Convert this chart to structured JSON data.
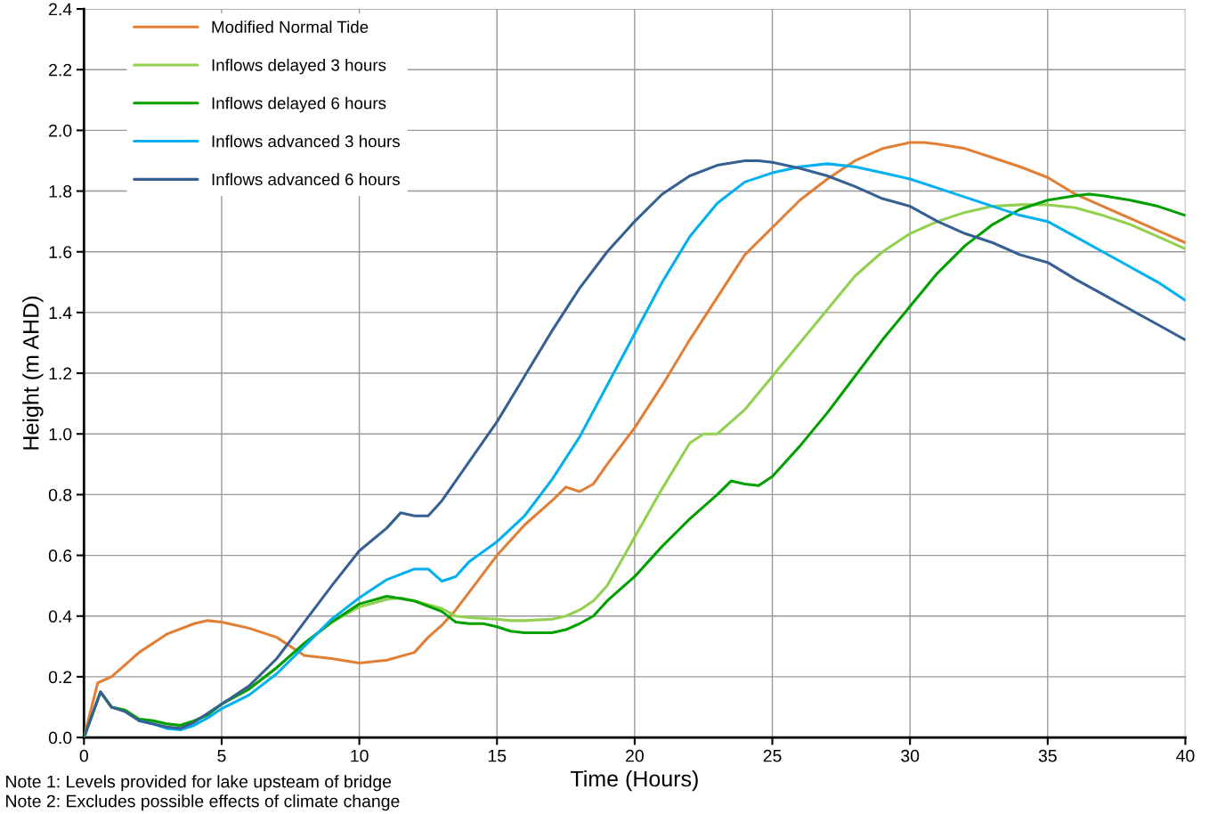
{
  "chart_data": {
    "type": "line",
    "xlabel": "Time (Hours)",
    "ylabel": "Height (m AHD)",
    "xlim": [
      0,
      40
    ],
    "xticks": [
      0,
      5,
      10,
      15,
      20,
      25,
      30,
      35,
      40
    ],
    "ylim": [
      0,
      2.4
    ],
    "yticks": [
      {
        "value": 0,
        "label": "0.0"
      },
      {
        "value": 0.2,
        "label": "0.2"
      },
      {
        "value": 0.4,
        "label": "0.4"
      },
      {
        "value": 0.6,
        "label": "0.6"
      },
      {
        "value": 0.8,
        "label": "0.8"
      },
      {
        "value": 1.0,
        "label": "1.0"
      },
      {
        "value": 1.2,
        "label": "1.2"
      },
      {
        "value": 1.4,
        "label": "1.4"
      },
      {
        "value": 1.6,
        "label": "1.6"
      },
      {
        "value": 1.8,
        "label": "1.8"
      },
      {
        "value": 2.0,
        "label": "2.0"
      },
      {
        "value": 2.2,
        "label": "2.2"
      },
      {
        "value": 2.4,
        "label": "2.4"
      }
    ],
    "grid": true,
    "legend": "top left",
    "marker": "none",
    "line_style": "solid",
    "annotations": [
      "Note 1: Levels provided for lake upsteam of bridge",
      "Note 2: Excludes possible effects of climate change"
    ],
    "series": [
      {
        "name": "Modified Normal Tide",
        "color": "#e07f35",
        "x": [
          0,
          0.5,
          1,
          1.5,
          2,
          3,
          4,
          4.5,
          5,
          6,
          7,
          8,
          9,
          10,
          11,
          12,
          12.5,
          13,
          13.5,
          15,
          16,
          17,
          17.5,
          18,
          18.5,
          19,
          20,
          21,
          22,
          23,
          24,
          25,
          26,
          27,
          28,
          29,
          30,
          30.5,
          31,
          32,
          33,
          34,
          35,
          36,
          37,
          38,
          39,
          40
        ],
        "values": [
          0,
          0.18,
          0.2,
          0.24,
          0.28,
          0.34,
          0.375,
          0.385,
          0.38,
          0.36,
          0.33,
          0.27,
          0.26,
          0.245,
          0.255,
          0.28,
          0.33,
          0.37,
          0.42,
          0.6,
          0.7,
          0.78,
          0.825,
          0.81,
          0.835,
          0.9,
          1.02,
          1.16,
          1.31,
          1.45,
          1.59,
          1.68,
          1.77,
          1.84,
          1.9,
          1.94,
          1.96,
          1.96,
          1.955,
          1.94,
          1.91,
          1.88,
          1.845,
          1.79,
          1.75,
          1.71,
          1.67,
          1.63
        ]
      },
      {
        "name": "Inflows delayed 3 hours",
        "color": "#92d050",
        "x": [
          0,
          0.6,
          1,
          1.5,
          2,
          2.5,
          3,
          3.5,
          4,
          4.5,
          5,
          6,
          7,
          8,
          9,
          10,
          11,
          11.5,
          12,
          13,
          13.5,
          14,
          15,
          15.5,
          16,
          17,
          17.5,
          18,
          18.5,
          19,
          19.5,
          20,
          21,
          22,
          22.5,
          23,
          24,
          25,
          26,
          27,
          28,
          29,
          30,
          31,
          32,
          33,
          34,
          35,
          36,
          37,
          38,
          39,
          40
        ],
        "values": [
          0,
          0.15,
          0.1,
          0.09,
          0.06,
          0.055,
          0.045,
          0.04,
          0.055,
          0.075,
          0.11,
          0.16,
          0.23,
          0.31,
          0.38,
          0.43,
          0.455,
          0.46,
          0.45,
          0.425,
          0.4,
          0.395,
          0.39,
          0.385,
          0.385,
          0.39,
          0.4,
          0.42,
          0.45,
          0.5,
          0.58,
          0.66,
          0.82,
          0.97,
          1.0,
          1.0,
          1.08,
          1.19,
          1.3,
          1.41,
          1.52,
          1.6,
          1.66,
          1.7,
          1.73,
          1.75,
          1.755,
          1.755,
          1.745,
          1.72,
          1.69,
          1.65,
          1.61
        ]
      },
      {
        "name": "Inflows delayed 6 hours",
        "color": "#00a000",
        "x": [
          0,
          0.6,
          1,
          1.5,
          2,
          2.5,
          3,
          3.5,
          4,
          4.5,
          5,
          6,
          7,
          8,
          9,
          10,
          11,
          12,
          13,
          13.5,
          14,
          14.5,
          15,
          15.5,
          16,
          17,
          17.5,
          18,
          18.5,
          19,
          20,
          21,
          22,
          23,
          23.5,
          24,
          24.5,
          25,
          26,
          27,
          28,
          29,
          30,
          31,
          32,
          33,
          34,
          35,
          36,
          36.5,
          37,
          38,
          39,
          40
        ],
        "values": [
          0,
          0.15,
          0.1,
          0.09,
          0.06,
          0.055,
          0.045,
          0.04,
          0.055,
          0.075,
          0.11,
          0.16,
          0.23,
          0.31,
          0.38,
          0.44,
          0.465,
          0.45,
          0.415,
          0.38,
          0.375,
          0.375,
          0.365,
          0.35,
          0.345,
          0.345,
          0.355,
          0.375,
          0.4,
          0.45,
          0.53,
          0.63,
          0.72,
          0.8,
          0.845,
          0.835,
          0.83,
          0.86,
          0.96,
          1.07,
          1.19,
          1.31,
          1.42,
          1.53,
          1.62,
          1.69,
          1.74,
          1.77,
          1.785,
          1.79,
          1.785,
          1.77,
          1.75,
          1.72
        ]
      },
      {
        "name": "Inflows advanced 3 hours",
        "color": "#00b0f0",
        "x": [
          2,
          2.5,
          3,
          3.5,
          4,
          4.5,
          5,
          6,
          7,
          8,
          9,
          10,
          11,
          12,
          12.5,
          13,
          13.5,
          14,
          15,
          16,
          17,
          18,
          19,
          20,
          21,
          22,
          23,
          24,
          25,
          26,
          27,
          28,
          29,
          30,
          31,
          32,
          33,
          34,
          35,
          36,
          37,
          38,
          39,
          40
        ],
        "values": [
          0.055,
          0.045,
          0.03,
          0.025,
          0.04,
          0.065,
          0.095,
          0.14,
          0.21,
          0.3,
          0.39,
          0.46,
          0.52,
          0.555,
          0.555,
          0.515,
          0.53,
          0.58,
          0.645,
          0.73,
          0.85,
          0.99,
          1.16,
          1.33,
          1.5,
          1.65,
          1.76,
          1.83,
          1.86,
          1.88,
          1.89,
          1.88,
          1.86,
          1.84,
          1.81,
          1.78,
          1.75,
          1.72,
          1.7,
          1.65,
          1.6,
          1.55,
          1.5,
          1.44
        ]
      },
      {
        "name": "Inflows advanced 6 hours",
        "color": "#376092",
        "x": [
          0,
          0.6,
          1,
          1.5,
          2,
          2.5,
          3,
          3.5,
          4,
          4.5,
          5,
          6,
          7,
          8,
          9,
          10,
          11,
          11.5,
          12,
          12.5,
          13,
          14,
          15,
          16,
          17,
          18,
          19,
          20,
          21,
          22,
          23,
          24,
          24.5,
          25,
          26,
          27,
          28,
          29,
          30,
          31,
          32,
          33,
          34,
          35,
          36,
          37,
          38,
          39,
          40
        ],
        "values": [
          0,
          0.15,
          0.1,
          0.085,
          0.055,
          0.045,
          0.035,
          0.03,
          0.05,
          0.08,
          0.11,
          0.17,
          0.26,
          0.38,
          0.5,
          0.615,
          0.69,
          0.74,
          0.73,
          0.73,
          0.78,
          0.91,
          1.04,
          1.19,
          1.34,
          1.48,
          1.6,
          1.7,
          1.79,
          1.85,
          1.885,
          1.9,
          1.9,
          1.895,
          1.875,
          1.85,
          1.815,
          1.775,
          1.75,
          1.7,
          1.66,
          1.63,
          1.59,
          1.565,
          1.51,
          1.46,
          1.41,
          1.36,
          1.31
        ]
      }
    ]
  }
}
